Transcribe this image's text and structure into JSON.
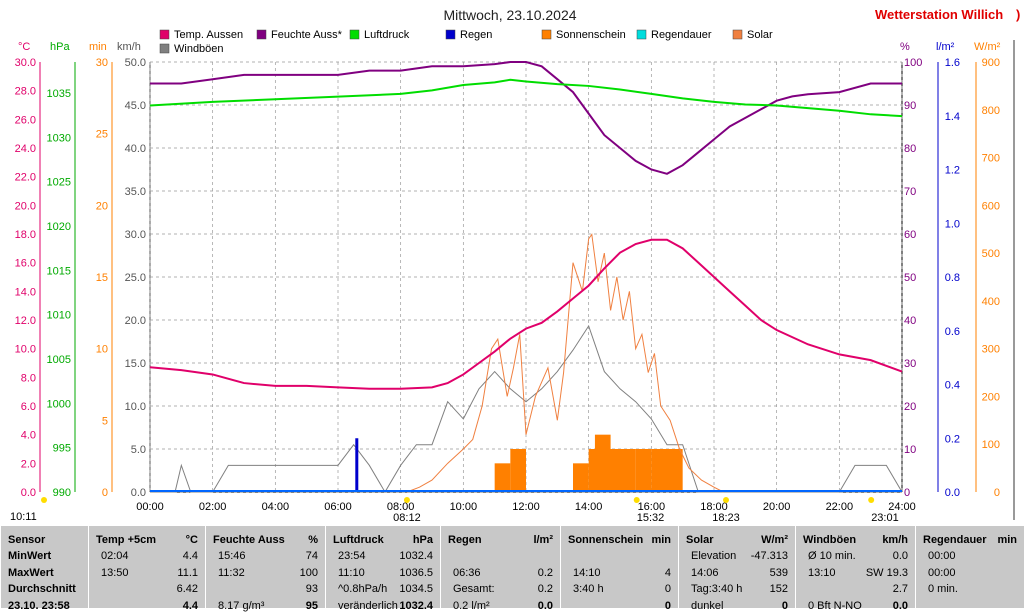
{
  "title": "Mittwoch, 23.10.2024",
  "station": "Wetterstation Willich",
  "station_suffix": ")",
  "legend": [
    {
      "label": "Temp. Aussen",
      "color": "#e0006a"
    },
    {
      "label": "Feuchte Auss*",
      "color": "#800080"
    },
    {
      "label": "Luftdruck",
      "color": "#00dd00"
    },
    {
      "label": "Regen",
      "color": "#0000cc"
    },
    {
      "label": "Sonnenschein",
      "color": "#ff8000"
    },
    {
      "label": "Regendauer",
      "color": "#00dddd"
    },
    {
      "label": "Solar",
      "color": "#f08040"
    },
    {
      "label": "Windböen",
      "color": "#808080"
    }
  ],
  "unit_labels": {
    "temp": "°C",
    "press": "hPa",
    "min": "min",
    "kmh": "km/h",
    "pct": "%",
    "rain": "l/m²",
    "solar": "W/m²"
  },
  "axes": {
    "temp": [
      "30.0",
      "28.0",
      "26.0",
      "24.0",
      "22.0",
      "20.0",
      "18.0",
      "16.0",
      "14.0",
      "12.0",
      "10.0",
      "8.0",
      "6.0",
      "4.0",
      "2.0",
      "0.0"
    ],
    "press": [
      "1035",
      "1030",
      "1025",
      "1020",
      "1015",
      "1010",
      "1005",
      "1000",
      "995",
      "990"
    ],
    "min": [
      "30",
      "25",
      "20",
      "15",
      "10",
      "5",
      "0"
    ],
    "kmh": [
      "50.0",
      "45.0",
      "40.0",
      "35.0",
      "30.0",
      "25.0",
      "20.0",
      "15.0",
      "10.0",
      "5.0",
      "0.0"
    ],
    "pct": [
      "100",
      "90",
      "80",
      "70",
      "60",
      "50",
      "40",
      "30",
      "20",
      "10",
      "0"
    ],
    "rain": [
      "1.6",
      "1.4",
      "1.2",
      "1.0",
      "0.8",
      "0.6",
      "0.4",
      "0.2",
      "0.0"
    ],
    "solar": [
      "900",
      "800",
      "700",
      "600",
      "500",
      "400",
      "300",
      "200",
      "100",
      "0"
    ],
    "time": [
      "00:00",
      "02:00",
      "04:00",
      "06:00",
      "08:00",
      "10:00",
      "12:00",
      "14:00",
      "16:00",
      "18:00",
      "20:00",
      "22:00",
      "24:00"
    ]
  },
  "markers": {
    "left": "10:11",
    "sunrise": "08:12",
    "noon": "15:32",
    "sunset": "18:23",
    "moon": "23:01"
  },
  "chart_data": {
    "type": "line",
    "x_unit": "hours",
    "series": [
      {
        "name": "Temp. Aussen",
        "unit": "°C",
        "color": "#e0006a",
        "x": [
          0,
          1,
          2,
          3,
          4,
          5,
          6,
          7,
          7.5,
          8,
          9,
          9.5,
          10,
          10.5,
          11,
          11.5,
          12,
          12.5,
          13,
          13.5,
          14,
          14.5,
          15,
          15.5,
          16,
          16.5,
          17,
          17.5,
          18,
          18.5,
          19,
          19.5,
          20,
          21,
          22,
          23,
          24
        ],
        "y": [
          8.7,
          8.5,
          8.2,
          7.6,
          7.4,
          7.4,
          7.3,
          7.2,
          7.2,
          7.2,
          7.3,
          7.6,
          8.2,
          9.0,
          9.8,
          10.7,
          11.4,
          11.8,
          12.6,
          13.5,
          14.4,
          15.6,
          16.7,
          17.3,
          17.6,
          17.6,
          17.0,
          16.0,
          15.0,
          14.0,
          13.0,
          12.0,
          11.3,
          10.3,
          9.6,
          9.2,
          8.4
        ]
      },
      {
        "name": "Feuchte Auss*",
        "unit": "%",
        "color": "#800080",
        "x": [
          0,
          1,
          2,
          3,
          4,
          5,
          6,
          7,
          8,
          9,
          10,
          11,
          11.5,
          12,
          12.5,
          13,
          13.5,
          14,
          14.5,
          15,
          15.5,
          16,
          16.5,
          17,
          17.5,
          18,
          18.5,
          19,
          19.5,
          20,
          20.5,
          21,
          22,
          23,
          24
        ],
        "y": [
          95,
          95,
          96,
          97,
          97,
          97,
          97,
          98,
          98,
          99,
          99,
          99.5,
          100,
          100,
          99,
          96,
          93,
          88,
          83,
          80,
          77,
          75,
          74,
          76,
          79,
          82,
          85,
          87,
          89,
          91,
          92,
          92.5,
          93,
          95,
          95
        ]
      },
      {
        "name": "Luftdruck",
        "unit": "hPa",
        "color": "#00dd00",
        "x": [
          0,
          2,
          4,
          6,
          8,
          9,
          10,
          11,
          11.5,
          12,
          13,
          14,
          15,
          16,
          17,
          18,
          19,
          20,
          21,
          22,
          23,
          24
        ],
        "y": [
          1033.6,
          1034.0,
          1034.3,
          1034.6,
          1034.9,
          1035.3,
          1035.9,
          1036.2,
          1036.5,
          1036.3,
          1036.0,
          1035.8,
          1035.4,
          1034.9,
          1034.4,
          1034.0,
          1033.7,
          1033.6,
          1033.3,
          1033.0,
          1032.6,
          1032.4
        ]
      },
      {
        "name": "Solar",
        "unit": "W/m²",
        "color": "#f08040",
        "x": [
          8.2,
          8.6,
          9,
          9.5,
          10,
          10.3,
          10.6,
          10.9,
          11.1,
          11.4,
          11.6,
          11.8,
          12,
          12.3,
          12.7,
          13,
          13.2,
          13.5,
          13.8,
          14,
          14.1,
          14.3,
          14.5,
          14.7,
          14.9,
          15.1,
          15.3,
          15.5,
          15.7,
          15.9,
          16.1,
          16.3,
          16.6,
          16.9,
          17.2,
          17.6,
          18,
          18.3
        ],
        "y": [
          0,
          10,
          25,
          60,
          90,
          110,
          180,
          300,
          320,
          200,
          260,
          330,
          120,
          200,
          260,
          150,
          250,
          480,
          420,
          530,
          539,
          440,
          500,
          380,
          450,
          360,
          420,
          300,
          330,
          250,
          290,
          180,
          150,
          90,
          50,
          25,
          10,
          0
        ]
      },
      {
        "name": "Windböen",
        "unit": "km/h",
        "color": "#808080",
        "x": [
          0,
          0.8,
          1,
          1.3,
          2,
          2.5,
          3,
          3.5,
          4,
          4.5,
          5,
          5.5,
          6,
          6.5,
          7,
          7.5,
          8,
          8.5,
          9,
          9.5,
          10,
          10.5,
          11,
          11.5,
          12,
          12.5,
          13,
          13.5,
          14,
          14.5,
          15,
          15.5,
          16,
          16.5,
          17,
          17.5,
          18,
          19,
          20,
          21,
          22,
          22.5,
          23,
          23.5,
          24
        ],
        "y": [
          0,
          0,
          3.1,
          0,
          0,
          3.1,
          3.1,
          3.1,
          3.1,
          3.1,
          3.1,
          3.1,
          3.1,
          5.5,
          3.1,
          0,
          3.1,
          5.5,
          5.5,
          10.5,
          8.5,
          12,
          14,
          12,
          10.5,
          12,
          14,
          16.5,
          19.3,
          14,
          12,
          10.5,
          8.5,
          5.5,
          5.5,
          0,
          0,
          0,
          0,
          0,
          0,
          3.1,
          3.1,
          3.1,
          0
        ]
      },
      {
        "name": "Regen",
        "unit": "l/m²",
        "color": "#0000cc",
        "x": [
          6.6
        ],
        "y": [
          0.2
        ]
      },
      {
        "name": "Sonnenschein",
        "unit": "min",
        "color": "#ff8000",
        "x": [
          11,
          11.5,
          13.5,
          14,
          14.2,
          14.5,
          15,
          15.5,
          16,
          16.5
        ],
        "y": [
          2,
          3,
          2,
          3,
          4,
          3,
          3,
          3,
          3,
          3
        ]
      }
    ],
    "xlim": [
      0,
      24
    ],
    "ylim_temp": [
      0,
      30
    ],
    "ylim_press": [
      990,
      1035
    ],
    "ylim_min": [
      0,
      30
    ],
    "ylim_kmh": [
      0,
      50
    ],
    "ylim_pct": [
      0,
      100
    ],
    "ylim_rain": [
      0,
      1.6
    ],
    "ylim_solar": [
      0,
      900
    ],
    "grid": true
  },
  "stats": {
    "headers": [
      {
        "label": "Sensor",
        "unit": ""
      },
      {
        "label": "Temp +5cm",
        "unit": "°C"
      },
      {
        "label": "Feuchte Auss",
        "unit": "%"
      },
      {
        "label": "Luftdruck",
        "unit": "hPa"
      },
      {
        "label": "Regen",
        "unit": "l/m²"
      },
      {
        "label": "Sonnenschein",
        "unit": "min"
      },
      {
        "label": "Solar",
        "unit": "W/m²"
      },
      {
        "label": "Windböen",
        "unit": "km/h"
      },
      {
        "label": "Regendauer",
        "unit": "min"
      }
    ],
    "rows": [
      [
        "MinWert",
        "02:04",
        "4.4",
        "15:46",
        "74",
        "23:54",
        "1032.4",
        "",
        "",
        "",
        "",
        "Elevation",
        "-47.313",
        "Ø 10 min.",
        "0.0",
        "00:00",
        ""
      ],
      [
        "MaxWert",
        "13:50",
        "11.1",
        "11:32",
        "100",
        "11:10",
        "1036.5",
        "06:36",
        "0.2",
        "14:10",
        "4",
        "14:06",
        "539",
        "13:10",
        "SW 19.3",
        "00:00",
        ""
      ],
      [
        "Durchschnitt",
        "",
        "6.42",
        "",
        "93",
        "^0.8hPa/h",
        "1034.5",
        "Gesamt:",
        "0.2",
        "3:40 h",
        "0",
        "Tag:3:40 h",
        "152",
        "",
        "2.7",
        "0 min.",
        ""
      ],
      [
        "23.10. 23:58",
        "",
        "4.4",
        "8.17 g/m³",
        "95",
        "veränderlich",
        "1032.4",
        "0.2 l/m²",
        "0.0",
        "",
        "0",
        "dunkel",
        "0",
        "0 Bft N-NO",
        "0.0",
        "",
        ""
      ]
    ]
  }
}
